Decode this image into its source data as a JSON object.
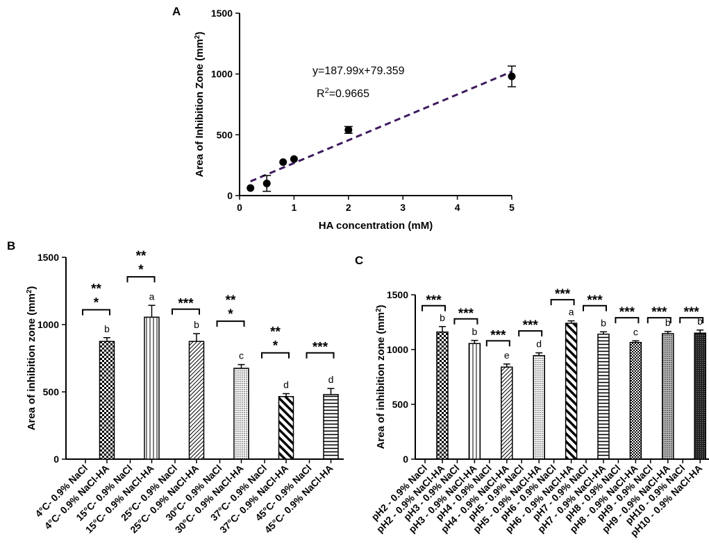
{
  "chart_data": [
    {
      "panel": "A",
      "type": "scatter",
      "xlabel": "HA concentration (mM)",
      "ylabel": "Area of Inhibition Zone (mm",
      "ylabel_sup": "2",
      "ylabel_end": ")",
      "xlim": [
        0,
        5
      ],
      "ylim": [
        0,
        1500
      ],
      "xticks": [
        "0",
        "1",
        "2",
        "3",
        "4",
        "5"
      ],
      "yticks": [
        "0",
        "500",
        "1000",
        "1500"
      ],
      "points": [
        {
          "x": 0.2,
          "y": 62,
          "err": 0
        },
        {
          "x": 0.5,
          "y": 100,
          "err": 65
        },
        {
          "x": 0.8,
          "y": 275,
          "err": 0
        },
        {
          "x": 1.0,
          "y": 300,
          "err": 0
        },
        {
          "x": 2.0,
          "y": 540,
          "err": 28
        },
        {
          "x": 5.0,
          "y": 980,
          "err": 85
        }
      ],
      "fit": {
        "slope": 187.99,
        "intercept": 79.359,
        "x_range": [
          0.2,
          5.0
        ],
        "color": "#3d1a5e"
      },
      "equation": "y=187.99x+79.359",
      "r2_prefix": "R",
      "r2_sup": "2",
      "r2_value": "=0.9665"
    },
    {
      "panel": "B",
      "type": "bar",
      "ylabel": "Area of inhibition zone (mm",
      "ylabel_sup": "2",
      "ylabel_end": ")",
      "ylim": [
        0,
        1500
      ],
      "yticks": [
        "0",
        "500",
        "1000",
        "1500"
      ],
      "categories": [
        "4°C- 0.9% NaCl",
        "4°C- 0.9% NaCl-HA",
        "15°C- 0.9% NaCl",
        "15°C- 0.9% NaCl-HA",
        "25°C- 0.9% NaCl",
        "25°C- 0.9% NaCl-HA",
        "30°C- 0.9% NaCl",
        "30°C- 0.9% NaCl-HA",
        "37°C- 0.9% NaCl",
        "37°C- 0.9% NaCl-HA",
        "45°C- 0.9% NaCl",
        "45°C- 0.9% NaCl-HA"
      ],
      "values": [
        0,
        875,
        0,
        1055,
        0,
        875,
        0,
        675,
        0,
        465,
        0,
        480
      ],
      "errors": [
        0,
        28,
        0,
        88,
        0,
        58,
        0,
        28,
        0,
        22,
        0,
        45
      ],
      "letters": [
        "",
        "b",
        "",
        "a",
        "",
        "b",
        "",
        "c",
        "",
        "d",
        "",
        "d"
      ],
      "patterns": [
        "",
        "checker",
        "",
        "vlines",
        "",
        "diag",
        "",
        "dots",
        "",
        "thick",
        "",
        "hlines"
      ],
      "significance": [
        {
          "pair": [
            0,
            1
          ],
          "level": 1110,
          "lines": [
            "**",
            "*"
          ]
        },
        {
          "pair": [
            2,
            3
          ],
          "level": 1355,
          "lines": [
            "**",
            "*"
          ]
        },
        {
          "pair": [
            4,
            5
          ],
          "level": 1115,
          "lines": [
            "***"
          ]
        },
        {
          "pair": [
            6,
            7
          ],
          "level": 1025,
          "lines": [
            "**",
            "*"
          ]
        },
        {
          "pair": [
            8,
            9
          ],
          "level": 790,
          "lines": [
            "**",
            "*"
          ]
        },
        {
          "pair": [
            10,
            11
          ],
          "level": 790,
          "lines": [
            "***"
          ]
        }
      ]
    },
    {
      "panel": "C",
      "type": "bar",
      "ylabel": "Area of inhibition zone (mm",
      "ylabel_sup": "2",
      "ylabel_end": ")",
      "ylim": [
        0,
        1500
      ],
      "yticks": [
        "0",
        "500",
        "1000",
        "1500"
      ],
      "categories": [
        "pH2 - 0.9% NaCl",
        "pH2 - 0.9% NaCl-HA",
        "pH3 - 0.9% NaCl",
        "pH3 - 0.9% NaCl-HA",
        "pH4 - 0.9% NaCl",
        "pH4 - 0.9% NaCl-HA",
        "pH5 - 0.9% NaCl",
        "pH5 - 0.9% NaCl-HA",
        "pH6 - 0.9% NaCl",
        "pH6 - 0.9% NaCl-HA",
        "pH7 - 0.9% NaCl",
        "pH7 - 0.9% NaCl-HA",
        "pH8 - 0.9% NaCl",
        "pH8 - 0.9% NaCl-HA",
        "pH9 - 0.9% NaCl",
        "pH9 - 0.9% NaCl-HA",
        "pH10 - 0.9% NaCl",
        "pH10 - 0.9% NaCl-HA"
      ],
      "values": [
        0,
        1160,
        0,
        1055,
        0,
        840,
        0,
        945,
        0,
        1240,
        0,
        1140,
        0,
        1065,
        0,
        1145,
        0,
        1150
      ],
      "errors": [
        0,
        50,
        0,
        28,
        0,
        28,
        0,
        25,
        0,
        22,
        0,
        22,
        0,
        15,
        0,
        20,
        0,
        28
      ],
      "letters": [
        "",
        "b",
        "",
        "b",
        "",
        "e",
        "",
        "d",
        "",
        "a",
        "",
        "b",
        "",
        "c",
        "",
        "b",
        "",
        "b"
      ],
      "patterns": [
        "",
        "checker",
        "",
        "vlines",
        "",
        "diag",
        "",
        "dots",
        "",
        "thick",
        "",
        "hlines",
        "",
        "checker2",
        "",
        "dots2",
        "",
        "dark"
      ],
      "significance": [
        {
          "pair": [
            0,
            1
          ],
          "level": 1400,
          "lines": [
            "***"
          ]
        },
        {
          "pair": [
            2,
            3
          ],
          "level": 1280,
          "lines": [
            "***"
          ]
        },
        {
          "pair": [
            4,
            5
          ],
          "level": 1080,
          "lines": [
            "***"
          ]
        },
        {
          "pair": [
            6,
            7
          ],
          "level": 1170,
          "lines": [
            "***"
          ]
        },
        {
          "pair": [
            8,
            9
          ],
          "level": 1455,
          "lines": [
            "***"
          ]
        },
        {
          "pair": [
            10,
            11
          ],
          "level": 1400,
          "lines": [
            "***"
          ]
        },
        {
          "pair": [
            12,
            13
          ],
          "level": 1290,
          "lines": [
            "***"
          ]
        },
        {
          "pair": [
            14,
            15
          ],
          "level": 1290,
          "lines": [
            "***"
          ]
        },
        {
          "pair": [
            16,
            17
          ],
          "level": 1290,
          "lines": [
            "***"
          ]
        }
      ]
    }
  ]
}
